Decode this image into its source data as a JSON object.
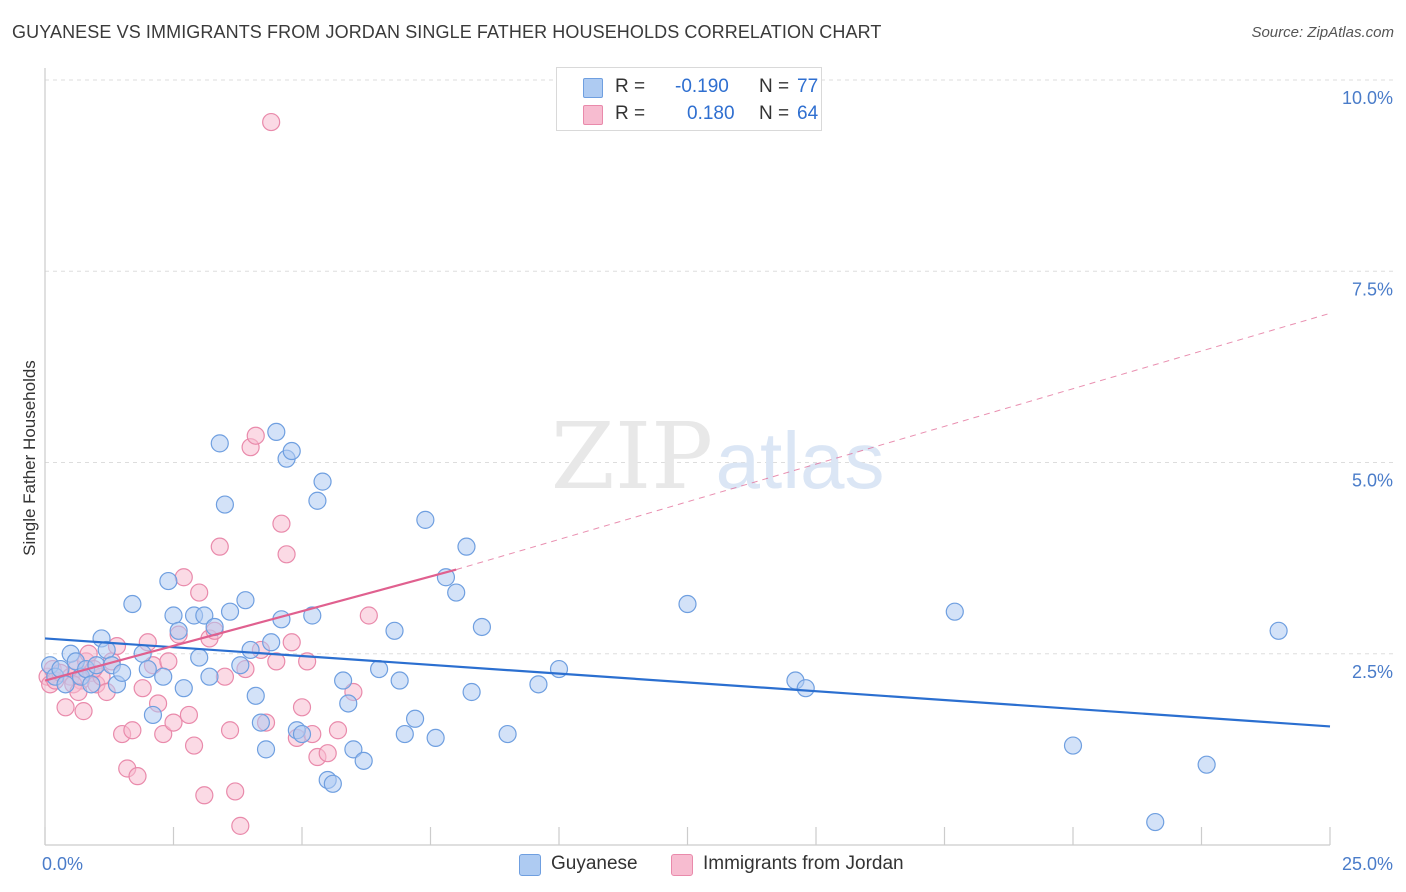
{
  "title": "GUYANESE VS IMMIGRANTS FROM JORDAN SINGLE FATHER HOUSEHOLDS CORRELATION CHART",
  "source": "Source: ZipAtlas.com",
  "watermark": {
    "zip": "ZIP",
    "atlas": "atlas"
  },
  "legend": {
    "rows": [
      {
        "r_label": "R =",
        "r_value": "-0.190",
        "n_label": "N =",
        "n_value": "77"
      },
      {
        "r_label": "R =",
        "r_value": "0.180",
        "n_label": "N =",
        "n_value": "64"
      }
    ]
  },
  "bottom_legend": {
    "guyanese": "Guyanese",
    "jordan": "Immigrants from Jordan"
  },
  "colors": {
    "guyanese_fill": "#aecbf2",
    "guyanese_stroke": "#6f9fe0",
    "guyanese_line": "#2b6fd0",
    "jordan_fill": "#f7bcd0",
    "jordan_stroke": "#e98aab",
    "jordan_line": "#e0608f",
    "tick": "#4a7cc9",
    "grid": "#dddddd"
  },
  "chart_data": {
    "type": "scatter",
    "title": "GUYANESE VS IMMIGRANTS FROM JORDAN SINGLE FATHER HOUSEHOLDS CORRELATION CHART",
    "xlabel": "",
    "ylabel": "Single Father Households",
    "xlim": [
      0,
      25
    ],
    "ylim": [
      0,
      10
    ],
    "x_tick_labels": [
      "0.0%",
      "25.0%"
    ],
    "y_ticks": [
      2.5,
      5.0,
      7.5,
      10.0
    ],
    "y_tick_labels": [
      "2.5%",
      "5.0%",
      "7.5%",
      "10.0%"
    ],
    "grid": "horizontal dashed",
    "legend_position": "top-center",
    "series": [
      {
        "name": "Guyanese",
        "r": -0.19,
        "n": 77,
        "trend": {
          "x": [
            0,
            25
          ],
          "y": [
            2.7,
            1.55
          ]
        },
        "points": [
          [
            0.1,
            2.35
          ],
          [
            0.2,
            2.2
          ],
          [
            0.3,
            2.3
          ],
          [
            0.4,
            2.1
          ],
          [
            0.5,
            2.5
          ],
          [
            0.6,
            2.4
          ],
          [
            0.7,
            2.2
          ],
          [
            0.8,
            2.3
          ],
          [
            0.9,
            2.1
          ],
          [
            1.0,
            2.35
          ],
          [
            1.1,
            2.7
          ],
          [
            1.2,
            2.55
          ],
          [
            1.3,
            2.35
          ],
          [
            1.4,
            2.1
          ],
          [
            1.5,
            2.25
          ],
          [
            1.7,
            3.15
          ],
          [
            1.9,
            2.5
          ],
          [
            2.0,
            2.3
          ],
          [
            2.1,
            1.7
          ],
          [
            2.3,
            2.2
          ],
          [
            2.4,
            3.45
          ],
          [
            2.5,
            3.0
          ],
          [
            2.6,
            2.8
          ],
          [
            2.7,
            2.05
          ],
          [
            2.9,
            3.0
          ],
          [
            3.0,
            2.45
          ],
          [
            3.1,
            3.0
          ],
          [
            3.2,
            2.2
          ],
          [
            3.3,
            2.85
          ],
          [
            3.4,
            5.25
          ],
          [
            3.5,
            4.45
          ],
          [
            3.6,
            3.05
          ],
          [
            3.8,
            2.35
          ],
          [
            3.9,
            3.2
          ],
          [
            4.0,
            2.55
          ],
          [
            4.1,
            1.95
          ],
          [
            4.2,
            1.6
          ],
          [
            4.3,
            1.25
          ],
          [
            4.4,
            2.65
          ],
          [
            4.5,
            5.4
          ],
          [
            4.6,
            2.95
          ],
          [
            4.7,
            5.05
          ],
          [
            4.8,
            5.15
          ],
          [
            4.9,
            1.5
          ],
          [
            5.0,
            1.45
          ],
          [
            5.2,
            3.0
          ],
          [
            5.3,
            4.5
          ],
          [
            5.4,
            4.75
          ],
          [
            5.5,
            0.85
          ],
          [
            5.6,
            0.8
          ],
          [
            5.8,
            2.15
          ],
          [
            5.9,
            1.85
          ],
          [
            6.0,
            1.25
          ],
          [
            6.2,
            1.1
          ],
          [
            6.5,
            2.3
          ],
          [
            6.8,
            2.8
          ],
          [
            6.9,
            2.15
          ],
          [
            7.0,
            1.45
          ],
          [
            7.2,
            1.65
          ],
          [
            7.4,
            4.25
          ],
          [
            7.6,
            1.4
          ],
          [
            7.8,
            3.5
          ],
          [
            8.0,
            3.3
          ],
          [
            8.2,
            3.9
          ],
          [
            8.3,
            2.0
          ],
          [
            8.5,
            2.85
          ],
          [
            9.0,
            1.45
          ],
          [
            9.6,
            2.1
          ],
          [
            10.0,
            2.3
          ],
          [
            12.5,
            3.15
          ],
          [
            14.6,
            2.15
          ],
          [
            14.8,
            2.05
          ],
          [
            17.7,
            3.05
          ],
          [
            20.0,
            1.3
          ],
          [
            21.6,
            0.3
          ],
          [
            22.6,
            1.05
          ],
          [
            24.0,
            2.8
          ]
        ]
      },
      {
        "name": "Immigrants from Jordan",
        "r": 0.18,
        "n": 64,
        "trend": {
          "x": [
            0,
            8
          ],
          "y": [
            2.15,
            3.6
          ]
        },
        "trend_extended": {
          "x": [
            8,
            25
          ],
          "y": [
            3.6,
            6.95
          ]
        },
        "points": [
          [
            0.05,
            2.2
          ],
          [
            0.1,
            2.1
          ],
          [
            0.15,
            2.3
          ],
          [
            0.2,
            2.15
          ],
          [
            0.3,
            2.25
          ],
          [
            0.4,
            1.8
          ],
          [
            0.5,
            2.2
          ],
          [
            0.6,
            2.3
          ],
          [
            0.7,
            2.15
          ],
          [
            0.8,
            2.4
          ],
          [
            0.9,
            2.25
          ],
          [
            1.0,
            2.1
          ],
          [
            1.1,
            2.2
          ],
          [
            1.2,
            2.0
          ],
          [
            1.3,
            2.4
          ],
          [
            1.4,
            2.6
          ],
          [
            1.5,
            1.45
          ],
          [
            1.6,
            1.0
          ],
          [
            1.7,
            1.5
          ],
          [
            1.8,
            0.9
          ],
          [
            1.9,
            2.05
          ],
          [
            2.0,
            2.65
          ],
          [
            2.1,
            2.35
          ],
          [
            2.2,
            1.85
          ],
          [
            2.3,
            1.45
          ],
          [
            2.4,
            2.4
          ],
          [
            2.5,
            1.6
          ],
          [
            2.6,
            2.75
          ],
          [
            2.7,
            3.5
          ],
          [
            2.8,
            1.7
          ],
          [
            2.9,
            1.3
          ],
          [
            3.0,
            3.3
          ],
          [
            3.1,
            0.65
          ],
          [
            3.2,
            2.7
          ],
          [
            3.3,
            2.8
          ],
          [
            3.4,
            3.9
          ],
          [
            3.5,
            2.2
          ],
          [
            3.6,
            1.5
          ],
          [
            3.7,
            0.7
          ],
          [
            3.8,
            0.25
          ],
          [
            3.9,
            2.3
          ],
          [
            4.0,
            5.2
          ],
          [
            4.1,
            5.35
          ],
          [
            4.2,
            2.55
          ],
          [
            4.3,
            1.6
          ],
          [
            4.4,
            9.45
          ],
          [
            4.5,
            2.4
          ],
          [
            4.6,
            4.2
          ],
          [
            4.7,
            3.8
          ],
          [
            4.8,
            2.65
          ],
          [
            4.9,
            1.4
          ],
          [
            5.0,
            1.8
          ],
          [
            5.1,
            2.4
          ],
          [
            5.2,
            1.45
          ],
          [
            5.3,
            1.15
          ],
          [
            5.5,
            1.2
          ],
          [
            5.7,
            1.5
          ],
          [
            6.0,
            2.0
          ],
          [
            6.3,
            3.0
          ],
          [
            0.55,
            2.1
          ],
          [
            0.65,
            2.0
          ],
          [
            0.75,
            1.75
          ],
          [
            0.85,
            2.5
          ],
          [
            0.95,
            2.3
          ]
        ]
      }
    ]
  }
}
